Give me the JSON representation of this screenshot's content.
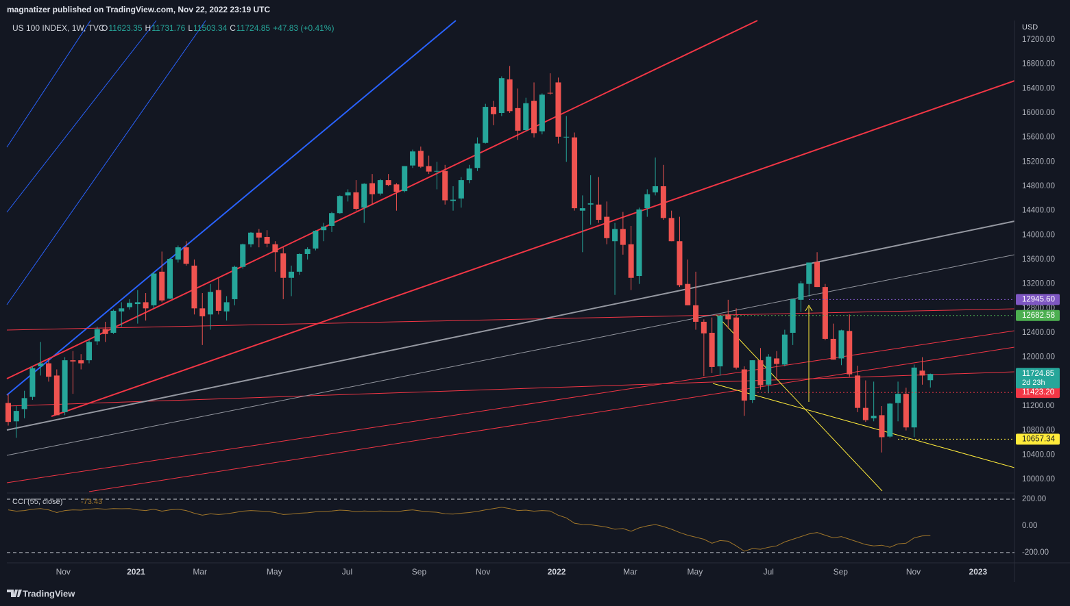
{
  "header": {
    "published": "magnatizer published on TradingView.com, Nov 22, 2022 23:19 UTC",
    "symbol": "US 100 INDEX, 1W, TVC",
    "ohlc_labels": [
      "O",
      "H",
      "L",
      "C"
    ],
    "change": "+47.83 (+0.41%)",
    "currency": "USD",
    "countdown": "2d 23h"
  },
  "footer": {
    "brand": "TradingView"
  },
  "chart_data": [
    {
      "type": "candlestick",
      "up_color": "#26a69a",
      "down_color": "#ef5350",
      "xlim": [
        -0.17,
        124.4
      ],
      "xticks": [
        {
          "value": 6.8,
          "label": "Nov"
        },
        {
          "value": 15.8,
          "label": "2021"
        },
        {
          "value": 23.7,
          "label": "Mar"
        },
        {
          "value": 32.9,
          "label": "May"
        },
        {
          "value": 41.9,
          "label": "Jul"
        },
        {
          "value": 50.8,
          "label": "Sep"
        },
        {
          "value": 58.7,
          "label": "Nov"
        },
        {
          "value": 67.8,
          "label": "2022"
        },
        {
          "value": 76.9,
          "label": "Mar"
        },
        {
          "value": 84.9,
          "label": "May"
        },
        {
          "value": 94.0,
          "label": "Jul"
        },
        {
          "value": 102.9,
          "label": "Sep"
        },
        {
          "value": 111.9,
          "label": "Nov"
        },
        {
          "value": 119.9,
          "label": "2023"
        }
      ],
      "ylim": [
        9798,
        17514
      ],
      "yticks": [
        {
          "value": 17200,
          "label": "17200.00"
        },
        {
          "value": 16800,
          "label": "16800.00"
        },
        {
          "value": 16400,
          "label": "16400.00"
        },
        {
          "value": 16000,
          "label": "16000.00"
        },
        {
          "value": 15600,
          "label": "15600.00"
        },
        {
          "value": 15200,
          "label": "15200.00"
        },
        {
          "value": 14800,
          "label": "14800.00"
        },
        {
          "value": 14400,
          "label": "14400.00"
        },
        {
          "value": 14000,
          "label": "14000.00"
        },
        {
          "value": 13600,
          "label": "13600.00"
        },
        {
          "value": 13200,
          "label": "13200.00"
        },
        {
          "value": 12800,
          "label": "12800.00"
        },
        {
          "value": 12400,
          "label": "12400.00"
        },
        {
          "value": 12000,
          "label": "12000.00"
        },
        {
          "value": 11600,
          "label": "11600.00"
        },
        {
          "value": 11200,
          "label": "11200.00"
        },
        {
          "value": 10800,
          "label": "10800.00"
        },
        {
          "value": 10400,
          "label": "10400.00"
        },
        {
          "value": 10000,
          "label": "10000.00"
        }
      ],
      "price_labels": [
        {
          "value": 12945.6,
          "label": "12945.60",
          "color": "#7e57c2"
        },
        {
          "value": 12682.58,
          "label": "12682.58",
          "color": "#4caf50"
        },
        {
          "value": 11423.2,
          "label": "11423.20",
          "color": "#f23645"
        },
        {
          "value": 10657.34,
          "label": "10657.34",
          "color": "#ffeb3b"
        }
      ],
      "values": [
        [
          11250,
          11400,
          10880,
          10940
        ],
        [
          10950,
          11200,
          10680,
          11120
        ],
        [
          11150,
          11450,
          11000,
          11330
        ],
        [
          11350,
          11850,
          11300,
          11820
        ],
        [
          11850,
          12250,
          11700,
          11900
        ],
        [
          11900,
          11980,
          11600,
          11680
        ],
        [
          11700,
          11800,
          11050,
          11050
        ],
        [
          11100,
          12000,
          11050,
          11950
        ],
        [
          11950,
          12100,
          11400,
          11930
        ],
        [
          11950,
          12050,
          11800,
          11900
        ],
        [
          11950,
          12280,
          11900,
          12250
        ],
        [
          12260,
          12500,
          12200,
          12460
        ],
        [
          12460,
          12580,
          12250,
          12380
        ],
        [
          12400,
          12780,
          12380,
          12760
        ],
        [
          12750,
          12900,
          12500,
          12800
        ],
        [
          12820,
          12950,
          12780,
          12890
        ],
        [
          12870,
          13100,
          12550,
          12900
        ],
        [
          12900,
          13050,
          12600,
          12800
        ],
        [
          12850,
          13400,
          12800,
          13370
        ],
        [
          13400,
          13730,
          12900,
          12930
        ],
        [
          12960,
          13620,
          12950,
          13610
        ],
        [
          13600,
          13830,
          13550,
          13800
        ],
        [
          13800,
          13900,
          13500,
          13530
        ],
        [
          13500,
          13600,
          12700,
          12800
        ],
        [
          12800,
          13050,
          12200,
          12670
        ],
        [
          12700,
          13200,
          12450,
          13070
        ],
        [
          13100,
          13300,
          12700,
          12760
        ],
        [
          12750,
          13000,
          12600,
          12900
        ],
        [
          12950,
          13500,
          12850,
          13480
        ],
        [
          13480,
          13860,
          13450,
          13850
        ],
        [
          13850,
          14050,
          13800,
          14040
        ],
        [
          14040,
          14100,
          13800,
          13960
        ],
        [
          13970,
          14080,
          13800,
          13860
        ],
        [
          13850,
          13900,
          13400,
          13720
        ],
        [
          13700,
          13800,
          12950,
          13300
        ],
        [
          13300,
          13500,
          13000,
          13400
        ],
        [
          13400,
          13700,
          13350,
          13690
        ],
        [
          13690,
          13800,
          13600,
          13770
        ],
        [
          13780,
          14080,
          13750,
          14070
        ],
        [
          14080,
          14200,
          13900,
          14140
        ],
        [
          14150,
          14380,
          14050,
          14360
        ],
        [
          14360,
          14650,
          14350,
          14640
        ],
        [
          14650,
          14750,
          14550,
          14700
        ],
        [
          14700,
          14900,
          14400,
          14430
        ],
        [
          14450,
          14850,
          14200,
          14840
        ],
        [
          14850,
          15000,
          14500,
          14670
        ],
        [
          14680,
          14920,
          14650,
          14900
        ],
        [
          14900,
          15000,
          14800,
          14820
        ],
        [
          14830,
          14850,
          14400,
          14710
        ],
        [
          14720,
          15130,
          14700,
          15130
        ],
        [
          15140,
          15400,
          15100,
          15370
        ],
        [
          15380,
          15450,
          15100,
          15120
        ],
        [
          15130,
          15300,
          15000,
          15040
        ],
        [
          15040,
          15200,
          14750,
          15050
        ],
        [
          15050,
          15150,
          14500,
          14570
        ],
        [
          14560,
          14800,
          14400,
          14580
        ],
        [
          14600,
          14950,
          14450,
          14900
        ],
        [
          14900,
          15150,
          14850,
          15090
        ],
        [
          15100,
          15600,
          15050,
          15500
        ],
        [
          15510,
          16150,
          15500,
          16100
        ],
        [
          16100,
          16200,
          15800,
          15980
        ],
        [
          16000,
          16600,
          15950,
          16570
        ],
        [
          16550,
          16770,
          16000,
          16030
        ],
        [
          16080,
          16400,
          15560,
          15710
        ],
        [
          15720,
          16250,
          15700,
          16160
        ],
        [
          16200,
          16500,
          15600,
          15670
        ],
        [
          15700,
          16320,
          15650,
          16300
        ],
        [
          16330,
          16650,
          16300,
          16320
        ],
        [
          16500,
          16580,
          15500,
          15610
        ],
        [
          15600,
          15950,
          15200,
          15610
        ],
        [
          15600,
          15680,
          14400,
          14440
        ],
        [
          14400,
          14650,
          13720,
          14440
        ],
        [
          14500,
          14980,
          14170,
          14520
        ],
        [
          14500,
          14950,
          14200,
          14250
        ],
        [
          14300,
          14550,
          13850,
          13950
        ],
        [
          13900,
          14200,
          13020,
          14100
        ],
        [
          14100,
          14380,
          13680,
          13840
        ],
        [
          13850,
          14150,
          13100,
          13300
        ],
        [
          13330,
          14450,
          13200,
          14420
        ],
        [
          14440,
          14750,
          14300,
          14670
        ],
        [
          14700,
          15270,
          14650,
          14800
        ],
        [
          14800,
          15150,
          14250,
          14280
        ],
        [
          14280,
          14400,
          13900,
          13900
        ],
        [
          13900,
          14300,
          13150,
          13180
        ],
        [
          13200,
          13600,
          12850,
          12850
        ],
        [
          12850,
          13400,
          12450,
          12580
        ],
        [
          12580,
          12620,
          11690,
          12390
        ],
        [
          12400,
          12650,
          11740,
          11840
        ],
        [
          11850,
          12690,
          11700,
          12680
        ],
        [
          12700,
          12940,
          12470,
          12620
        ],
        [
          12650,
          12800,
          11800,
          11830
        ],
        [
          11800,
          11850,
          11040,
          11290
        ],
        [
          11300,
          11950,
          11250,
          11950
        ],
        [
          11950,
          12150,
          11470,
          11540
        ],
        [
          11550,
          12050,
          11410,
          12010
        ],
        [
          11980,
          12100,
          11640,
          11890
        ],
        [
          11880,
          12450,
          11850,
          12370
        ],
        [
          12400,
          12960,
          12200,
          12950
        ],
        [
          12940,
          13250,
          12740,
          13210
        ],
        [
          13200,
          13550,
          12990,
          13550
        ],
        [
          13560,
          13720,
          13150,
          13150
        ],
        [
          13150,
          13200,
          12280,
          12300
        ],
        [
          12300,
          12550,
          11960,
          11960
        ],
        [
          11980,
          12450,
          11870,
          12440
        ],
        [
          12430,
          12700,
          11680,
          11720
        ],
        [
          11700,
          11860,
          11100,
          11170
        ],
        [
          11170,
          11620,
          10940,
          10970
        ],
        [
          11000,
          11600,
          10950,
          11040
        ],
        [
          11050,
          11200,
          10440,
          10690
        ],
        [
          10700,
          11250,
          10680,
          11240
        ],
        [
          11250,
          11600,
          10950,
          11400
        ],
        [
          11400,
          11500,
          10800,
          10850
        ],
        [
          10850,
          11880,
          10690,
          11830
        ],
        [
          11780,
          12000,
          11550,
          11700
        ],
        [
          11623.35,
          11731.76,
          11503.34,
          11724.85
        ]
      ]
    },
    {
      "type": "line",
      "title": "CCI (55, close)",
      "color": "#a0762a",
      "ylim": [
        -267,
        236
      ],
      "yticks": [
        {
          "value": 200,
          "label": "200.00"
        },
        {
          "value": 0,
          "label": "0.00"
        },
        {
          "value": -200,
          "label": "-200.00"
        }
      ],
      "values": [
        120,
        110,
        115,
        125,
        130,
        120,
        100,
        115,
        120,
        118,
        125,
        130,
        125,
        130,
        128,
        130,
        120,
        115,
        125,
        110,
        120,
        125,
        115,
        95,
        80,
        90,
        85,
        90,
        100,
        110,
        115,
        112,
        108,
        100,
        85,
        88,
        95,
        98,
        105,
        108,
        112,
        118,
        115,
        105,
        112,
        108,
        112,
        108,
        105,
        115,
        120,
        112,
        105,
        102,
        90,
        88,
        95,
        100,
        108,
        120,
        130,
        140,
        130,
        115,
        118,
        110,
        115,
        112,
        80,
        60,
        20,
        10,
        8,
        0,
        -10,
        -25,
        -20,
        -40,
        -15,
        0,
        10,
        -5,
        -25,
        -50,
        -70,
        -85,
        -100,
        -130,
        -110,
        -115,
        -150,
        -190,
        -170,
        -175,
        -160,
        -150,
        -120,
        -100,
        -80,
        -60,
        -50,
        -70,
        -90,
        -80,
        -100,
        -120,
        -140,
        -150,
        -145,
        -160,
        -135,
        -130,
        -90,
        -75,
        -73.43
      ]
    }
  ]
}
